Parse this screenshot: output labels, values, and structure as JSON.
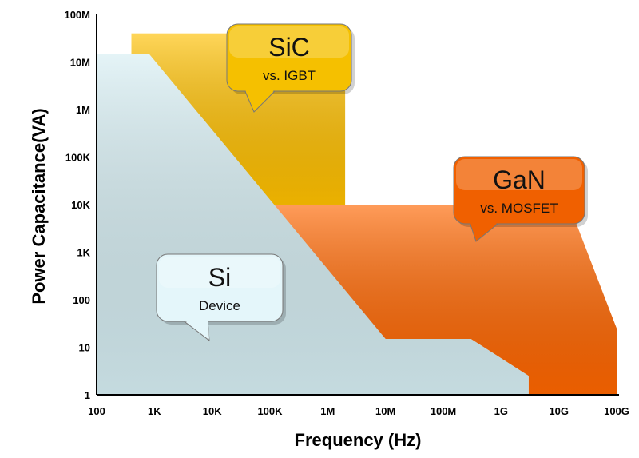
{
  "chart_data": {
    "type": "area",
    "title": "",
    "xlabel": "Frequency (Hz)",
    "ylabel": "Power Capacitance(VA)",
    "x_scale": "log",
    "y_scale": "log",
    "xlim": [
      100,
      100000000000
    ],
    "ylim": [
      1,
      100000000
    ],
    "grid": false,
    "x_ticks": [
      {
        "value": 100,
        "label": "100"
      },
      {
        "value": 1000,
        "label": "1K"
      },
      {
        "value": 10000,
        "label": "10K"
      },
      {
        "value": 100000,
        "label": "100K"
      },
      {
        "value": 1000000,
        "label": "1M"
      },
      {
        "value": 10000000,
        "label": "10M"
      },
      {
        "value": 100000000,
        "label": "100M"
      },
      {
        "value": 1000000000,
        "label": "1G"
      },
      {
        "value": 10000000000,
        "label": "10G"
      },
      {
        "value": 100000000000,
        "label": "100G"
      }
    ],
    "y_ticks": [
      {
        "value": 1,
        "label": "1"
      },
      {
        "value": 10,
        "label": "10"
      },
      {
        "value": 100,
        "label": "100"
      },
      {
        "value": 1000,
        "label": "1K"
      },
      {
        "value": 10000,
        "label": "10K"
      },
      {
        "value": 100000,
        "label": "100K"
      },
      {
        "value": 1000000,
        "label": "1M"
      },
      {
        "value": 10000000,
        "label": "10M"
      },
      {
        "value": 100000000,
        "label": "100M"
      }
    ],
    "regions": [
      {
        "title": "SiC",
        "subtitle": "vs. IGBT",
        "fill": "#ffc000",
        "callout_fill": "#f5c000",
        "text_color": "#111111",
        "boundary": [
          {
            "x": 400,
            "y": 40000000
          },
          {
            "x": 2000000,
            "y": 40000000
          },
          {
            "x": 2000000,
            "y": 10000
          },
          {
            "x": 1500000,
            "y": 10000
          },
          {
            "x": 60000,
            "y": 10000
          },
          {
            "x": 800,
            "y": 15000000
          },
          {
            "x": 400,
            "y": 15000000
          }
        ]
      },
      {
        "title": "GaN",
        "subtitle": "vs. MOSFET",
        "fill": "#ff6600",
        "callout_fill": "#f06000",
        "text_color": "#111111",
        "boundary": [
          {
            "x": 60000,
            "y": 10000
          },
          {
            "x": 15000000000,
            "y": 10000
          },
          {
            "x": 100000000000,
            "y": 25
          },
          {
            "x": 100000000000,
            "y": 1
          },
          {
            "x": 3000000000,
            "y": 1
          },
          {
            "x": 3000000000,
            "y": 2.5
          },
          {
            "x": 300000000,
            "y": 15
          },
          {
            "x": 10000000,
            "y": 15
          }
        ]
      },
      {
        "title": "Si",
        "subtitle": "Device",
        "fill": "#d6eef3",
        "callout_fill": "#e4f6fa",
        "text_color": "#111111",
        "boundary": [
          {
            "x": 100,
            "y": 1
          },
          {
            "x": 100,
            "y": 15000000
          },
          {
            "x": 800,
            "y": 15000000
          },
          {
            "x": 10000000,
            "y": 15
          },
          {
            "x": 300000000,
            "y": 15
          },
          {
            "x": 3000000000,
            "y": 2.5
          },
          {
            "x": 3000000000,
            "y": 1
          }
        ]
      }
    ]
  }
}
